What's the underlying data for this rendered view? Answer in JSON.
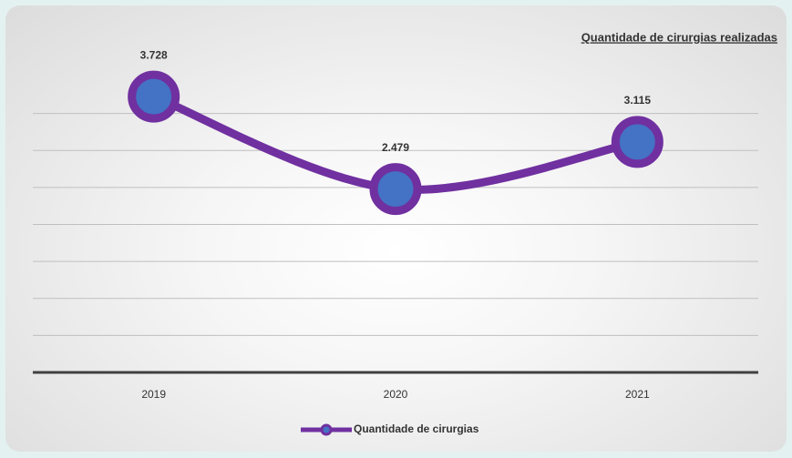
{
  "chart_data": {
    "type": "line",
    "title": "Quantidade de cirurgias realizadas",
    "categories": [
      "2019",
      "2020",
      "2021"
    ],
    "series": [
      {
        "name": "Quantidade de cirurgias",
        "color": "#7030a0",
        "marker_color": "#4472c4",
        "values": [
          3728,
          2479,
          3115
        ],
        "value_labels": [
          "3.728",
          "2.479",
          "3.115"
        ]
      }
    ],
    "ylim": [
      0,
      4000
    ],
    "yticks": [
      0,
      500,
      1000,
      1500,
      2000,
      2500,
      3000,
      3500
    ],
    "grid": true,
    "legend": "bottom"
  }
}
